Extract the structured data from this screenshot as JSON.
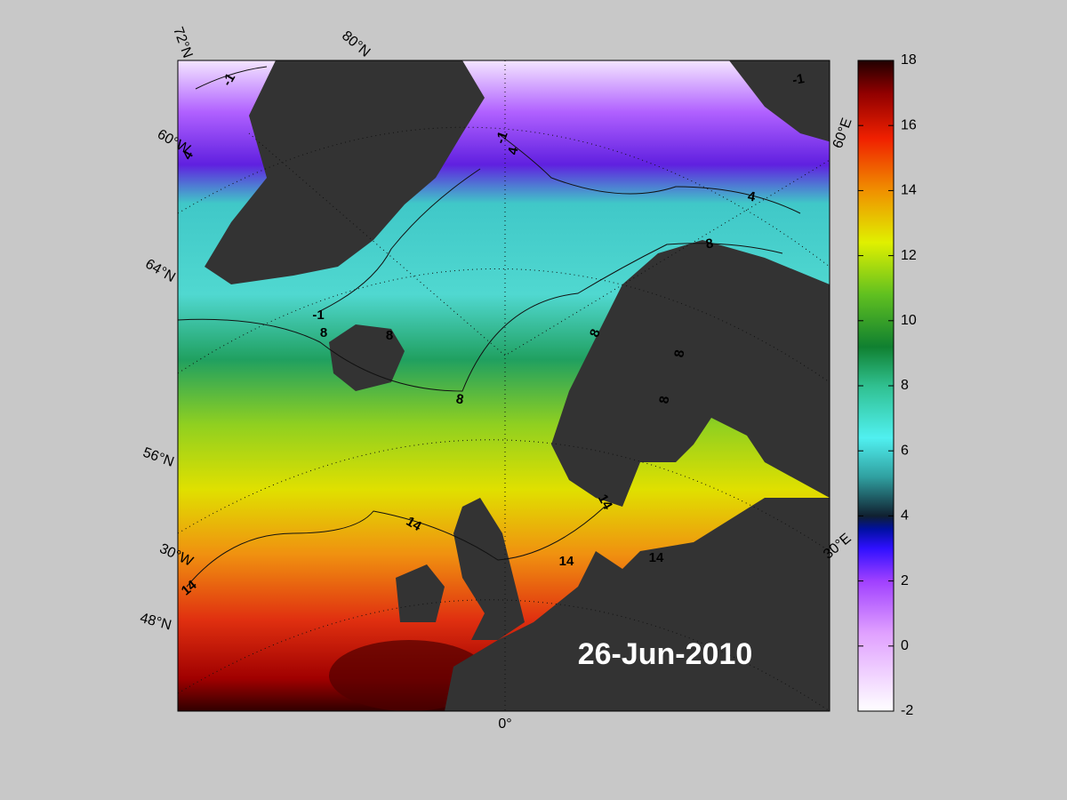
{
  "map": {
    "date": "26-Jun-2010",
    "graticule_labels": [
      "72°N",
      "80°N",
      "60°W",
      "64°N",
      "56°N",
      "30°W",
      "48°N",
      "0°",
      "60°E",
      "30°E"
    ],
    "contour_levels": [
      -1,
      4,
      8,
      14
    ],
    "colorbar": {
      "lim": [
        -2,
        18
      ],
      "ticks": [
        -2,
        0,
        2,
        4,
        6,
        8,
        10,
        12,
        14,
        16,
        18
      ]
    }
  }
}
